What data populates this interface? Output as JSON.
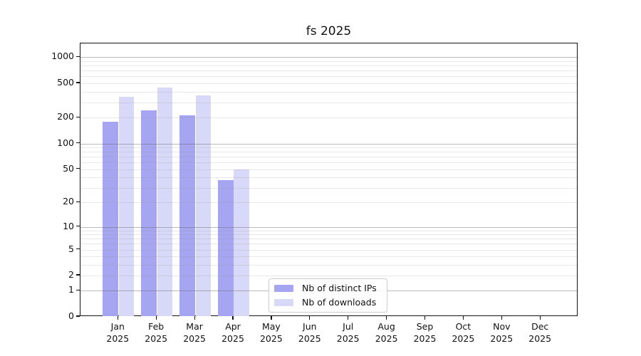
{
  "title": "fs 2025",
  "chart_data": {
    "type": "bar",
    "title": "fs 2025",
    "yscale": "log1p",
    "grid": "both",
    "legend_position": "lower-center-left",
    "categories": [
      "Jan",
      "Feb",
      "Mar",
      "Apr",
      "May",
      "Jun",
      "Jul",
      "Aug",
      "Sep",
      "Oct",
      "Nov",
      "Dec"
    ],
    "year_label": "2025",
    "yticks": [
      0,
      1,
      2,
      5,
      10,
      20,
      50,
      100,
      200,
      500,
      1000
    ],
    "ylim": [
      0,
      1430
    ],
    "series": [
      {
        "name": "Nb of distinct IPs",
        "color": "#a5a5f2",
        "values": [
          180,
          245,
          212,
          37,
          0,
          0,
          0,
          0,
          0,
          0,
          0,
          0
        ]
      },
      {
        "name": "Nb of downloads",
        "color": "#d8d8f8",
        "values": [
          350,
          450,
          360,
          50,
          0,
          0,
          0,
          0,
          0,
          0,
          0,
          0
        ]
      }
    ]
  },
  "colors": {
    "axis": "#111111",
    "grid_minor": "#e4e4e4",
    "grid_major": "#b0b0b0",
    "legend_border": "#cccccc",
    "background": "#ffffff"
  }
}
